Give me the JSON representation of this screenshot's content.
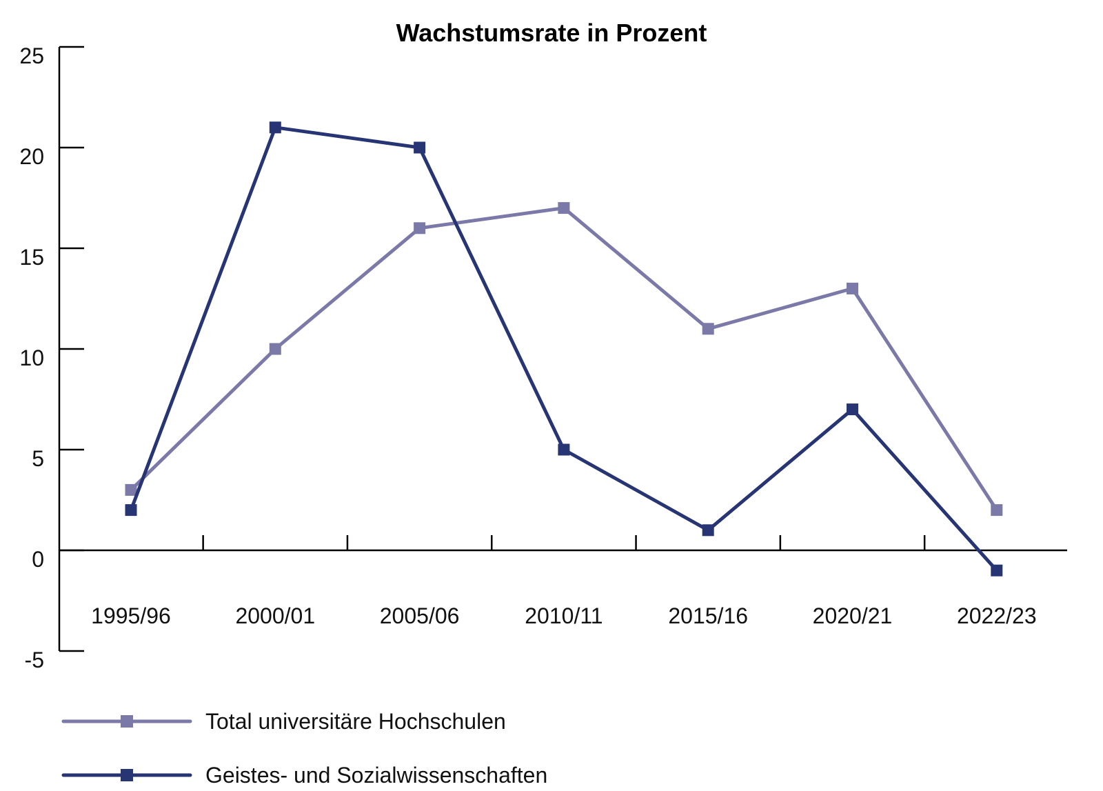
{
  "chart_data": {
    "type": "line",
    "title": "Wachstumsrate in Prozent",
    "xlabel": "",
    "ylabel": "",
    "categories": [
      "1995/96",
      "2000/01",
      "2005/06",
      "2010/11",
      "2015/16",
      "2020/21",
      "2022/23"
    ],
    "ylim": [
      -5,
      25
    ],
    "yticks": [
      "25",
      "20",
      "15",
      "10",
      "5",
      "0",
      "-5"
    ],
    "grid": false,
    "legend_position": "bottom-left",
    "series": [
      {
        "name": "Total universitäre Hochschulen",
        "color": "#7b79a8",
        "values": [
          3,
          10,
          16,
          17,
          11,
          13,
          2
        ]
      },
      {
        "name": "Geistes- und Sozialwissenschaften",
        "color": "#283574",
        "values": [
          2,
          21,
          20,
          5,
          1,
          7,
          -1
        ]
      }
    ]
  }
}
